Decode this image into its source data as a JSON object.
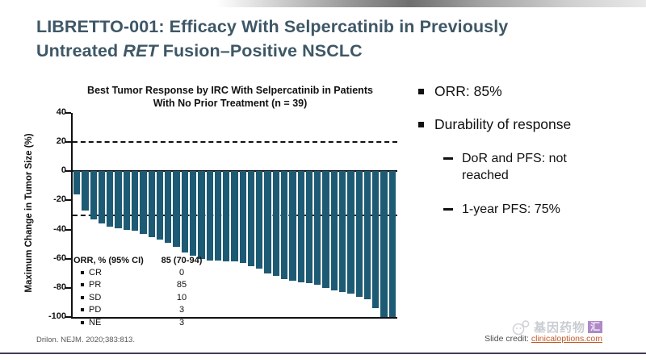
{
  "title": {
    "line1": "LIBRETTO-001: Efficacy With Selpercatinib in Previously",
    "line2_pre": "Untreated ",
    "line2_italic": "RET",
    "line2_post": " Fusion–Positive NSCLC"
  },
  "chart_data": {
    "type": "bar",
    "title": "Best Tumor Response by IRC With Selpercatinib in Patients With No Prior Treatment (n = 39)",
    "xlabel": "",
    "ylabel": "Maximum Change in Tumor Size (%)",
    "ylim": [
      -100,
      40
    ],
    "yticks": [
      40,
      20,
      0,
      -20,
      -40,
      -60,
      -80,
      -100
    ],
    "reference_lines": [
      20,
      -30
    ],
    "n": 39,
    "values": [
      -16,
      -27,
      -33,
      -36,
      -38,
      -39,
      -40,
      -41,
      -43,
      -45,
      -47,
      -49,
      -52,
      -56,
      -58,
      -60,
      -61,
      -61,
      -62,
      -62,
      -63,
      -65,
      -67,
      -70,
      -72,
      -74,
      -75,
      -76,
      -77,
      -78,
      -80,
      -82,
      -83,
      -84,
      -86,
      -88,
      -94,
      -100,
      -100
    ],
    "inset_table": {
      "header": {
        "label": "ORR, % (95% CI)",
        "value": "85 (70-94)"
      },
      "rows": [
        {
          "label": "CR",
          "value": "0"
        },
        {
          "label": "PR",
          "value": "85"
        },
        {
          "label": "SD",
          "value": "10"
        },
        {
          "label": "PD",
          "value": "3"
        },
        {
          "label": "NE",
          "value": "3"
        }
      ]
    }
  },
  "bullets": {
    "items": [
      {
        "level": 1,
        "text": "ORR: 85%"
      },
      {
        "level": 1,
        "text": "Durability of response"
      },
      {
        "level": 2,
        "text": "DoR and PFS: not reached"
      },
      {
        "level": 2,
        "text": "1-year PFS: 75%"
      }
    ]
  },
  "footer": {
    "reference": "Drilon. NEJM. 2020;383:813.",
    "credit_label": "Slide credit: ",
    "credit_link": "clinicaloptions.com",
    "watermark_text": "基因药物",
    "watermark_suffix": "汇"
  },
  "colors": {
    "bar": "#1d5a73",
    "title": "#3e5766",
    "link": "#c25a28",
    "accent_line": "#453c56",
    "watermark_purple": "#7d44a5"
  }
}
